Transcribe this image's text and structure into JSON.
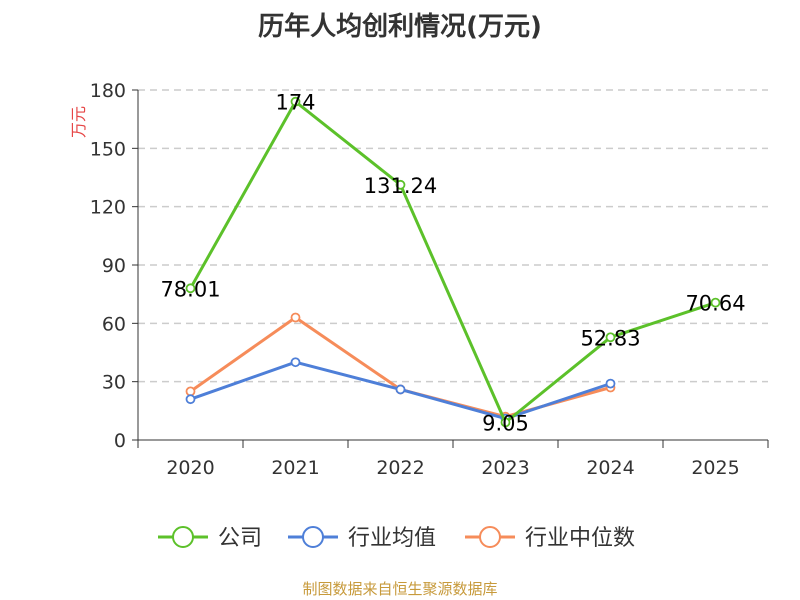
{
  "chart_data": {
    "type": "line",
    "title": "历年人均创利情况(万元)",
    "ylabel": "万元",
    "ylim": [
      0,
      180
    ],
    "yticks": [
      0,
      30,
      60,
      90,
      120,
      150,
      180
    ],
    "categories": [
      "2020",
      "2021",
      "2022",
      "2023",
      "2024",
      "2025"
    ],
    "grid": true,
    "legend_position": "bottom",
    "series": [
      {
        "name": "公司",
        "color": "#5cc12a",
        "values": [
          78.01,
          174,
          131.24,
          9.05,
          52.83,
          70.64
        ],
        "labels": [
          "78.01",
          "174",
          "131.24",
          "9.05",
          "52.83",
          "70.64"
        ]
      },
      {
        "name": "行业均值",
        "color": "#4e7fd8",
        "values": [
          21,
          40,
          26,
          11,
          29,
          null
        ]
      },
      {
        "name": "行业中位数",
        "color": "#f68c5a",
        "values": [
          25,
          63,
          26,
          12,
          27,
          null
        ]
      }
    ]
  },
  "source": "制图数据来自恒生聚源数据库"
}
